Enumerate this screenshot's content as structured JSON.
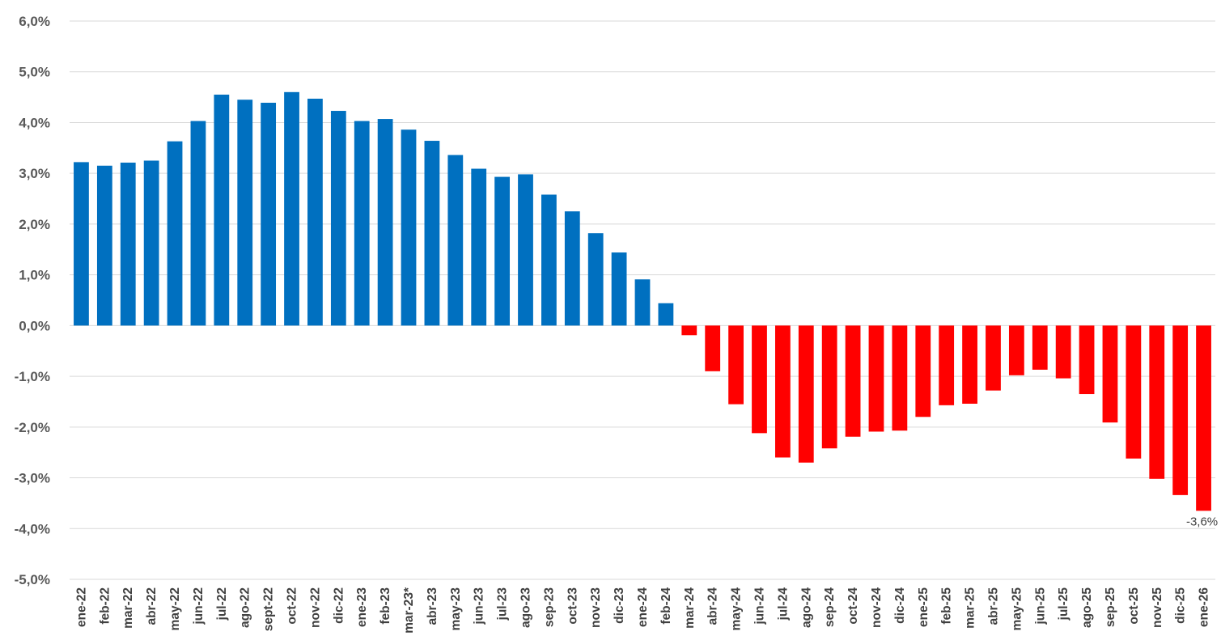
{
  "chart_data": {
    "type": "bar",
    "title": "",
    "xlabel": "",
    "ylabel": "",
    "ylim": [
      -5.0,
      6.0
    ],
    "y_ticks": [
      "6,0%",
      "5,0%",
      "4,0%",
      "3,0%",
      "2,0%",
      "1,0%",
      "0,0%",
      "-1,0%",
      "-2,0%",
      "-3,0%",
      "-4,0%",
      "-5,0%"
    ],
    "y_tick_values": [
      6,
      5,
      4,
      3,
      2,
      1,
      0,
      -1,
      -2,
      -3,
      -4,
      -5
    ],
    "grid": true,
    "legend": "none",
    "categories": [
      "ene-22",
      "feb-22",
      "mar-22",
      "abr-22",
      "may-22",
      "jun-22",
      "jul-22",
      "ago-22",
      "sept-22",
      "oct-22",
      "nov-22",
      "dic-22",
      "ene-23",
      "feb-23",
      "mar-23*",
      "abr-23",
      "may-23",
      "jun-23",
      "jul-23",
      "ago-23",
      "sep-23",
      "oct-23",
      "nov-23",
      "dic-23",
      "ene-24",
      "feb-24",
      "mar-24",
      "abr-24",
      "may-24",
      "jun-24",
      "jul-24",
      "ago-24",
      "sep-24",
      "oct-24",
      "nov-24",
      "dic-24",
      "ene-25",
      "feb-25",
      "mar-25",
      "abr-25",
      "may-25",
      "jun-25",
      "jul-25",
      "ago-25",
      "sep-25",
      "oct-25",
      "nov-25",
      "dic-25",
      "ene-26"
    ],
    "values": [
      3.22,
      3.15,
      3.21,
      3.25,
      3.63,
      4.03,
      4.55,
      4.45,
      4.39,
      4.6,
      4.47,
      4.23,
      4.03,
      4.07,
      3.86,
      3.64,
      3.36,
      3.09,
      2.93,
      2.98,
      2.58,
      2.25,
      1.82,
      1.44,
      0.91,
      0.44,
      -0.19,
      -0.9,
      -1.55,
      -2.12,
      -2.6,
      -2.7,
      -2.42,
      -2.19,
      -2.09,
      -2.07,
      -1.8,
      -1.57,
      -1.54,
      -1.28,
      -0.98,
      -0.87,
      -1.04,
      -1.35,
      -1.91,
      -2.62,
      -3.02,
      -3.34,
      -3.65
    ],
    "colors": {
      "positive": "#0070c0",
      "negative": "#ff0000",
      "grid": "#d9d9d9",
      "tick_text": "#595959",
      "category_text": "#404040"
    },
    "data_labels": [
      {
        "category": "ene-26",
        "text": "-3,6%"
      }
    ]
  }
}
